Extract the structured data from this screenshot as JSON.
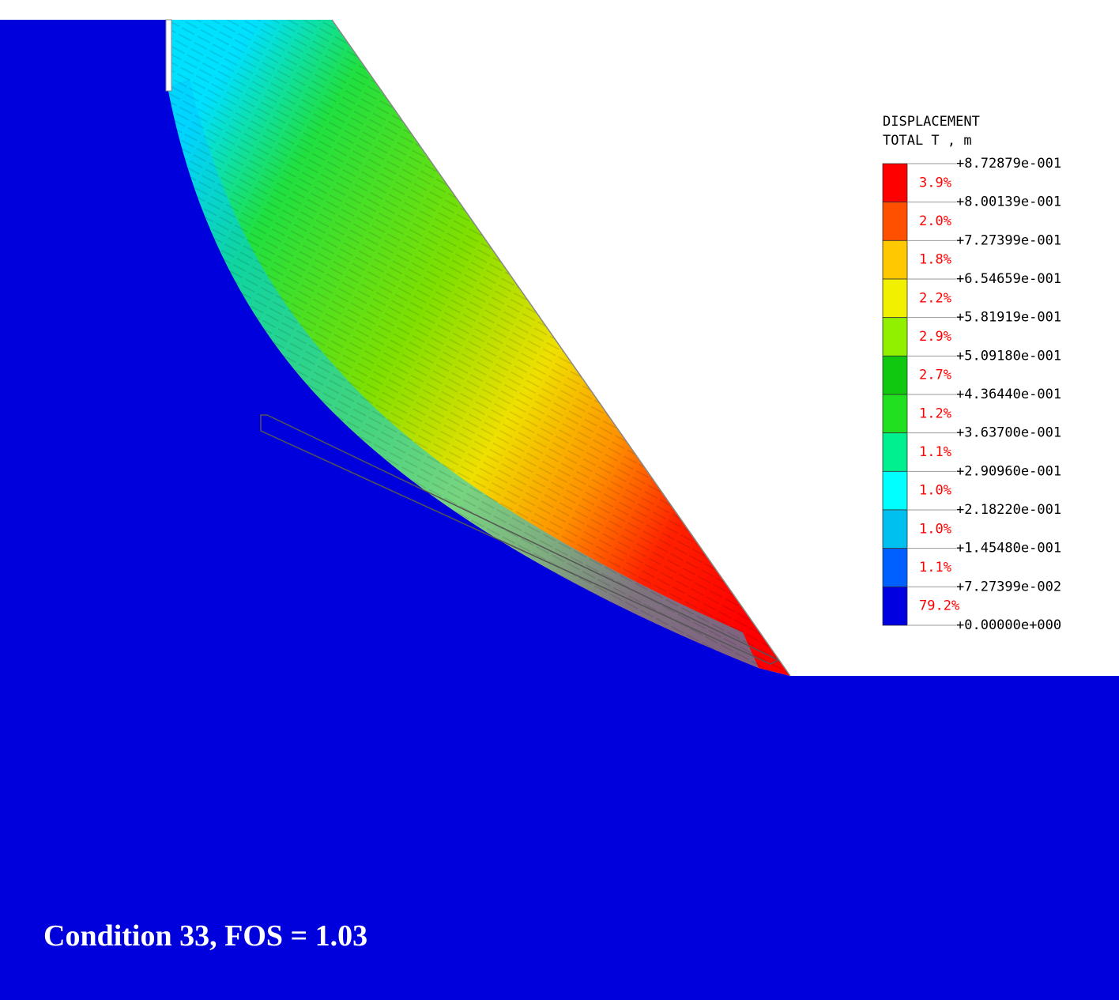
{
  "legend": {
    "title": [
      "DISPLACEMENT",
      "TOTAL T , m"
    ],
    "levels": [
      "+8.72879e-001",
      "+8.00139e-001",
      "+7.27399e-001",
      "+6.54659e-001",
      "+5.81919e-001",
      "+5.09180e-001",
      "+4.36440e-001",
      "+3.63700e-001",
      "+2.90960e-001",
      "+2.18220e-001",
      "+1.45480e-001",
      "+7.27399e-002",
      "+0.00000e+000"
    ],
    "percentages": [
      "3.9%",
      "2.0%",
      "1.8%",
      "2.2%",
      "2.9%",
      "2.7%",
      "1.2%",
      "1.1%",
      "1.0%",
      "1.0%",
      "1.1%",
      "79.2%"
    ],
    "colors": [
      "#ff0000",
      "#ff5000",
      "#ffc800",
      "#f0f000",
      "#90f000",
      "#10c810",
      "#20e020",
      "#00f090",
      "#00ffff",
      "#00c0f0",
      "#0060ff",
      "#0000e0"
    ]
  },
  "caption": "Condition 33, FOS = 1.03"
}
